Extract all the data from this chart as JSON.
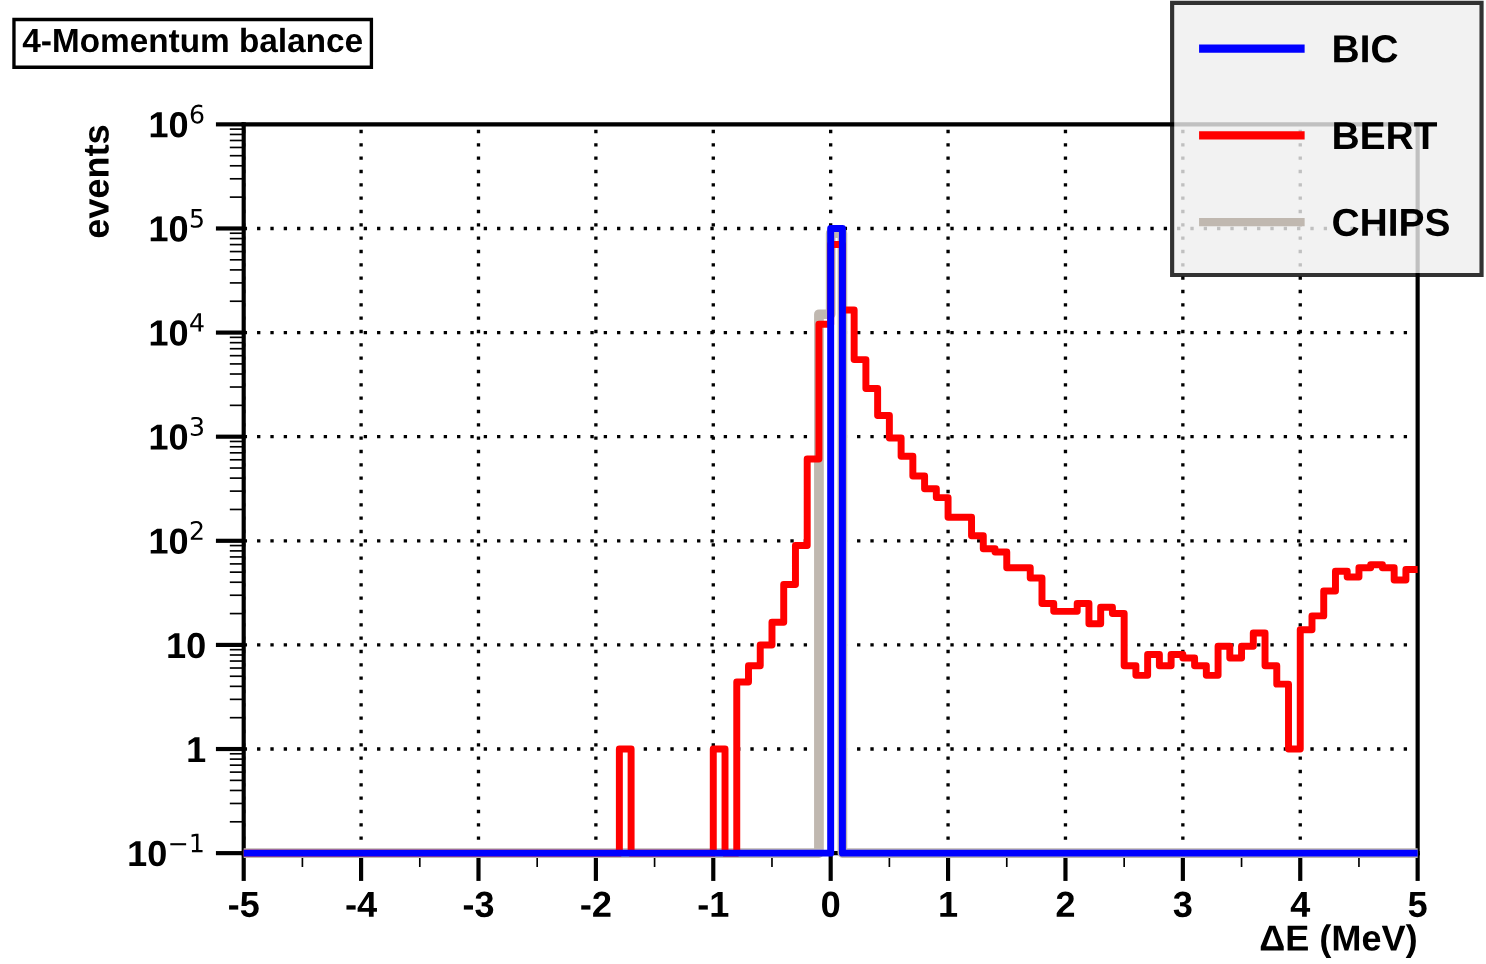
{
  "chart_data": {
    "type": "histogram",
    "title": "4-Momentum balance",
    "xlabel": "ΔE (MeV)",
    "ylabel": "events",
    "bins": [
      -5.0,
      -4.9,
      -4.8,
      -4.7,
      -4.6,
      -4.5,
      -4.4,
      -4.3,
      -4.2,
      -4.1,
      -4.0,
      -3.9,
      -3.8,
      -3.7,
      -3.6,
      -3.5,
      -3.4,
      -3.3,
      -3.2,
      -3.1,
      -3.0,
      -2.9,
      -2.8,
      -2.7,
      -2.6,
      -2.5,
      -2.4,
      -2.3,
      -2.2,
      -2.1,
      -2.0,
      -1.9,
      -1.8,
      -1.7,
      -1.6,
      -1.5,
      -1.4,
      -1.3,
      -1.2,
      -1.1,
      -1.0,
      -0.9,
      -0.8,
      -0.7,
      -0.6,
      -0.5,
      -0.4,
      -0.3,
      -0.2,
      -0.1,
      0.0,
      0.1,
      0.2,
      0.3,
      0.4,
      0.5,
      0.6,
      0.7,
      0.8,
      0.9,
      1.0,
      1.1,
      1.2,
      1.3,
      1.4,
      1.5,
      1.6,
      1.7,
      1.8,
      1.9,
      2.0,
      2.1,
      2.2,
      2.3,
      2.4,
      2.5,
      2.6,
      2.7,
      2.8,
      2.9,
      3.0,
      3.1,
      3.2,
      3.3,
      3.4,
      3.5,
      3.6,
      3.7,
      3.8,
      3.9,
      4.0,
      4.1,
      4.2,
      4.3,
      4.4,
      4.5,
      4.6,
      4.7,
      4.8,
      4.9,
      5.0
    ],
    "series": [
      {
        "name": "BIC",
        "color": "#0000ff",
        "values": [
          null,
          null,
          null,
          null,
          null,
          null,
          null,
          null,
          null,
          null,
          null,
          null,
          null,
          null,
          null,
          null,
          null,
          null,
          null,
          null,
          null,
          null,
          null,
          null,
          null,
          null,
          null,
          null,
          null,
          null,
          null,
          null,
          null,
          null,
          null,
          null,
          null,
          null,
          null,
          null,
          null,
          null,
          null,
          null,
          null,
          null,
          null,
          null,
          null,
          null,
          100000,
          null,
          null,
          null,
          null,
          null,
          null,
          null,
          null,
          null,
          null,
          null,
          null,
          null,
          null,
          null,
          null,
          null,
          null,
          null,
          null,
          null,
          null,
          null,
          null,
          null,
          null,
          null,
          null,
          null,
          null,
          null,
          null,
          null,
          null,
          null,
          null,
          null,
          null,
          null,
          null,
          null,
          null,
          null,
          null,
          null,
          null,
          null,
          null,
          null
        ]
      },
      {
        "name": "BERT",
        "color": "#ff0000",
        "values": [
          null,
          null,
          null,
          null,
          null,
          null,
          null,
          null,
          null,
          null,
          null,
          null,
          null,
          null,
          null,
          null,
          null,
          null,
          null,
          null,
          null,
          null,
          null,
          null,
          null,
          null,
          null,
          null,
          null,
          null,
          null,
          null,
          1,
          null,
          null,
          null,
          null,
          null,
          null,
          null,
          1,
          null,
          4.4,
          6.3,
          10,
          16.5,
          38,
          90,
          610,
          12000,
          70000,
          16500,
          5500,
          2900,
          1600,
          970,
          650,
          420,
          316,
          260,
          168,
          168,
          112,
          84,
          78,
          55,
          55,
          44,
          25,
          21,
          21,
          25,
          16,
          23,
          20,
          6.3,
          5.1,
          8.1,
          6.3,
          8.1,
          7.5,
          6.3,
          5.1,
          9.7,
          7.5,
          9.7,
          13,
          6.3,
          4.2,
          1,
          14,
          19,
          33,
          51,
          45,
          55,
          59,
          55,
          42,
          53
        ]
      },
      {
        "name": "CHIPS",
        "color": "#c0b8b0",
        "values": [
          null,
          null,
          null,
          null,
          null,
          null,
          null,
          null,
          null,
          null,
          null,
          null,
          null,
          null,
          null,
          null,
          null,
          null,
          null,
          null,
          null,
          null,
          null,
          null,
          null,
          null,
          null,
          null,
          null,
          null,
          null,
          null,
          null,
          null,
          null,
          null,
          null,
          null,
          null,
          null,
          null,
          null,
          null,
          null,
          null,
          null,
          null,
          null,
          null,
          15000,
          90000,
          null,
          null,
          null,
          null,
          null,
          null,
          null,
          null,
          null,
          null,
          null,
          null,
          null,
          null,
          null,
          null,
          null,
          null,
          null,
          null,
          null,
          null,
          null,
          null,
          null,
          null,
          null,
          null,
          null,
          null,
          null,
          null,
          null,
          null,
          null,
          null,
          null,
          null,
          null,
          null,
          null,
          null,
          null,
          null,
          null,
          null,
          null,
          null,
          null
        ]
      }
    ],
    "log": "y",
    "xlim": [
      -5,
      5
    ],
    "ylim": [
      0.1,
      1000000
    ],
    "xticks": [
      -5,
      -4,
      -3,
      -2,
      -1,
      0,
      1,
      2,
      3,
      4,
      5
    ],
    "yticks": [
      {
        "value": 0.1,
        "label": "10$^{−1}$"
      },
      1,
      10,
      {
        "value": 100,
        "label": "10$^{2}$"
      },
      {
        "value": 1000,
        "label": "10$^{3}$"
      },
      {
        "value": 10000,
        "label": "10$^{4}$"
      },
      {
        "value": 100000,
        "label": "10$^{5}$"
      },
      {
        "value": 1000000,
        "label": "10$^{6}$"
      }
    ],
    "grid": true,
    "legend": "top right",
    "line_style": "solid"
  }
}
